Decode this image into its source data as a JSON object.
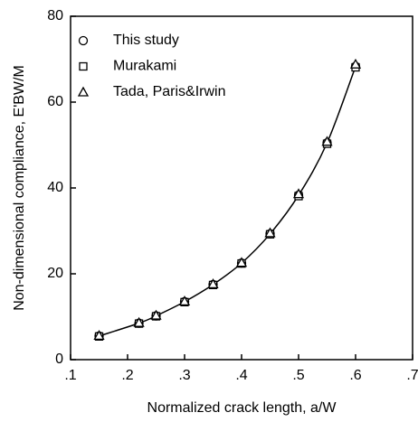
{
  "chart_data": {
    "type": "scatter",
    "x_label": "Normalized crack length, a/W",
    "y_label": "Non-dimensional compliance, E'BW/M",
    "x": [
      0.15,
      0.22,
      0.25,
      0.3,
      0.35,
      0.4,
      0.45,
      0.5,
      0.55,
      0.6
    ],
    "series": [
      {
        "name": "This study",
        "color": "#000000",
        "marker": "circle",
        "values": [
          5.5,
          8.5,
          10.2,
          13.5,
          17.5,
          22.5,
          29.3,
          38.3,
          50.5,
          68.3
        ]
      },
      {
        "name": "Murakami",
        "color": "#000000",
        "marker": "square",
        "values": [
          5.4,
          8.4,
          10.1,
          13.4,
          17.4,
          22.4,
          29.2,
          38.1,
          50.3,
          68.1
        ]
      },
      {
        "name": "Tada, Paris&Irwin",
        "color": "#000000",
        "marker": "triangle",
        "values": [
          5.6,
          8.6,
          10.3,
          13.6,
          17.6,
          22.6,
          29.5,
          38.6,
          50.8,
          68.8
        ]
      }
    ],
    "fit_line": true,
    "xlim": [
      0.1,
      0.7
    ],
    "xticks": [
      {
        "value": 0.1,
        "label": ".1"
      },
      {
        "value": 0.2,
        "label": ".2"
      },
      {
        "value": 0.3,
        "label": ".3"
      },
      {
        "value": 0.4,
        "label": ".4"
      },
      {
        "value": 0.5,
        "label": ".5"
      },
      {
        "value": 0.6,
        "label": ".6"
      },
      {
        "value": 0.7,
        "label": ".7"
      }
    ],
    "ylim": [
      0,
      80
    ],
    "yticks": [
      0,
      20,
      40,
      60,
      80
    ],
    "legend": "top-left"
  }
}
